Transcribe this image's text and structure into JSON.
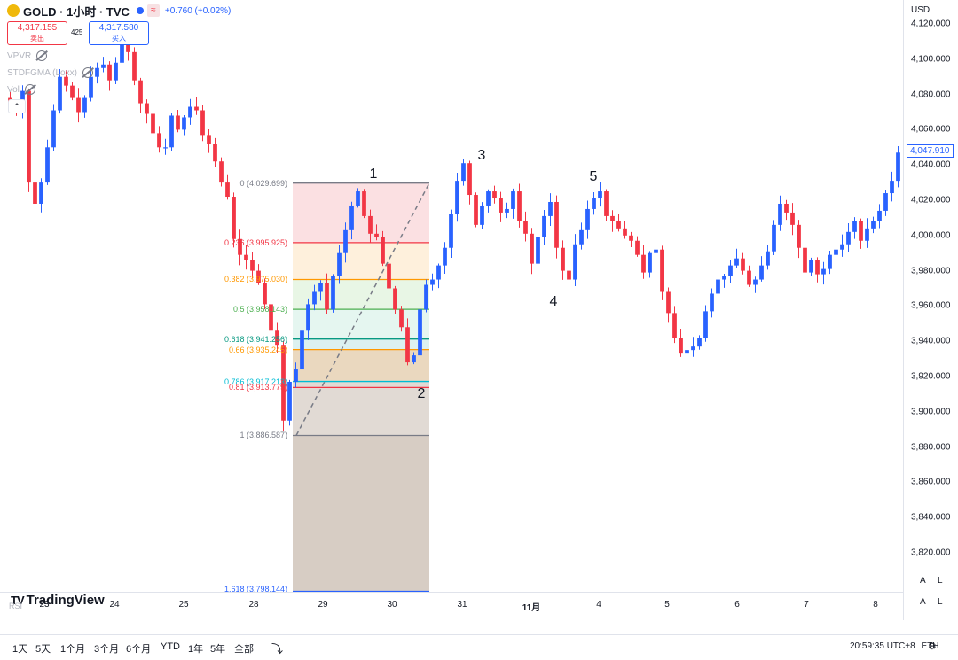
{
  "header": {
    "symbol_title": "GOLD · 1小时 · TVC",
    "wave_icon": "≈",
    "change": "+0.760 (+0.02%)",
    "sell_price": "4,317.155",
    "sell_label": "卖出",
    "spread": "425",
    "buy_price": "4,317.580",
    "buy_label": "买入",
    "indicators": [
      "VPVR",
      "STDFGMA (Loxx)",
      "Vol"
    ],
    "collapse_label": "⌃"
  },
  "price_axis": {
    "currency": "USD",
    "ticks": [
      "4,120.000",
      "4,100.000",
      "4,080.000",
      "4,060.000",
      "4,040.000",
      "4,020.000",
      "4,000.000",
      "3,980.000",
      "3,960.000",
      "3,940.000",
      "3,920.000",
      "3,900.000",
      "3,880.000",
      "3,860.000",
      "3,840.000",
      "3,820.000"
    ],
    "last_price": "4,047.910"
  },
  "time_axis": {
    "ticks": [
      "23",
      "24",
      "25",
      "28",
      "29",
      "30",
      "31",
      "11月",
      "4",
      "5",
      "6",
      "7",
      "8"
    ]
  },
  "wave_labels": [
    "1",
    "2",
    "3",
    "4",
    "5"
  ],
  "fib": {
    "labels": [
      "0 (4,029.699)",
      "0.236 (3,995.925)",
      "0.382 (3,975.030)",
      "0.5 (3,958.143)",
      "0.618 (3,941.256)",
      "0.66 (3,935.245)",
      "0.786 (3,917.213)",
      "0.81 (3,913.779)",
      "1 (3,886.587)",
      "1.618 (3,798.144)"
    ],
    "colors": [
      "#787b86",
      "#f23645",
      "#ff9800",
      "#4caf50",
      "#089981",
      "#ff9800",
      "#00bcd4",
      "#f23645",
      "#787b86",
      "#2962ff"
    ],
    "fills": [
      "#f7c6cb",
      "#fde3c0",
      "#d6eed0",
      "#cfeee3",
      "#bfe6e4",
      "#d9b88a",
      "#c9bcb0"
    ]
  },
  "chart_data": {
    "type": "candlestick",
    "symbol": "GOLD",
    "ylim": [
      3806,
      4128
    ],
    "xlabels": [
      "23",
      "24",
      "25",
      "28",
      "29",
      "30",
      "31",
      "11月",
      "4",
      "5",
      "6",
      "7",
      "8"
    ],
    "last_price": 4047.91,
    "wave_points": [
      {
        "label": "1",
        "price": 4029.7
      },
      {
        "label": "2",
        "price": 3916
      },
      {
        "label": "3",
        "price": 4038
      },
      {
        "label": "4",
        "price": 3968
      },
      {
        "label": "5",
        "price": 4027
      }
    ],
    "close_path": [
      4075,
      4070,
      4082,
      4030,
      4018,
      4030,
      4050,
      4071,
      4090,
      4085,
      4078,
      4070,
      4078,
      4090,
      4095,
      4097,
      4088,
      4098,
      4112,
      4104,
      4088,
      4075,
      4069,
      4058,
      4050,
      4050,
      4068,
      4060,
      4067,
      4073,
      4071,
      4057,
      4052,
      4042,
      4030,
      4022,
      3998,
      3989,
      3986,
      3980,
      3973,
      3961,
      3946,
      3938,
      3895,
      3917,
      3924,
      3946,
      3961,
      3968,
      3973,
      3958,
      3977,
      3990,
      4003,
      4017,
      4025,
      4011,
      4001,
      3999,
      3984,
      3970,
      3958,
      3948,
      3928,
      3932,
      3958,
      3972,
      3975,
      3983,
      3993,
      4012,
      4031,
      4041,
      4023,
      4006,
      4017,
      4025,
      4021,
      4013,
      4015,
      4025,
      4008,
      4001,
      3984,
      3999,
      4011,
      4019,
      3993,
      3980,
      3975,
      3995,
      4003,
      4015,
      4021,
      4025,
      4011,
      4008,
      4004,
      4000,
      3997,
      3989,
      3979,
      3990,
      3992,
      3968,
      3956,
      3942,
      3933,
      3935,
      3937,
      3942,
      3957,
      3967,
      3975,
      3977,
      3983,
      3987,
      3980,
      3972,
      3975,
      3983,
      3991,
      4006,
      4018,
      4013,
      4006,
      3993,
      3979,
      3986,
      3978,
      3981,
      3989,
      3992,
      3995,
      4002,
      4008,
      3997,
      4004,
      4008,
      4014,
      4024,
      4031,
      4047
    ]
  },
  "footer": {
    "tv_mark": "TV",
    "tv_logo": "TradingView",
    "rsi_label": "RSI",
    "axis_btn_a": "A",
    "axis_btn_l": "L",
    "ranges": [
      "1天",
      "5天",
      "1个月",
      "3个月",
      "6个月",
      "YTD",
      "1年",
      "5年",
      "全部"
    ],
    "replay_icon": "⤵",
    "clock": "20:59:35 UTC+8",
    "session": "ETH",
    "gear_icon": "⚙"
  }
}
